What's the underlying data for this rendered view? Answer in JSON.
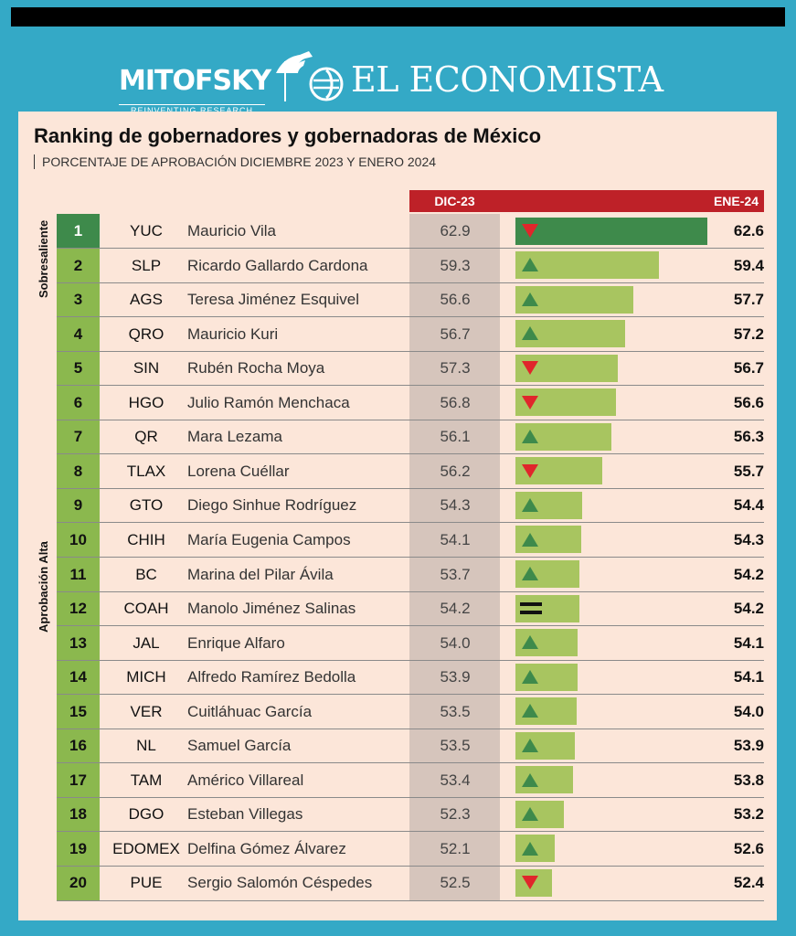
{
  "header": {
    "mitofsky_name": "MITOFSKY",
    "mitofsky_tagline": "REINVENTING RESEARCH",
    "publisher_name": "EL ECONOMISTA"
  },
  "colors": {
    "header_bg": "#34a9c6",
    "panel_bg": "#fce6d9",
    "accent_red": "#be2128",
    "bar_green": "#a8c560",
    "bar_dark_green": "#3e8a4b",
    "rank_green": "#8bb84e",
    "arrow_up": "#3e8a4b",
    "arrow_down": "#e0262b"
  },
  "chart_data": {
    "type": "bar",
    "title": "Ranking de gobernadores y gobernadoras de México",
    "subtitle": "PORCENTAJE DE APROBACIÓN DICIEMBRE 2023 Y ENERO 2024",
    "col_dic_label": "DIC-23",
    "col_ene_label": "ENE-24",
    "group_labels": [
      "Sobresaliente",
      "Aprobación Alta"
    ],
    "xlim": [
      50,
      63
    ],
    "rows": [
      {
        "rank": "1",
        "code": "YUC",
        "name": "Mauricio Vila",
        "dic": "62.9",
        "ene": "62.6",
        "ene_value": 62.6,
        "trend": "down",
        "group": "Sobresaliente"
      },
      {
        "rank": "2",
        "code": "SLP",
        "name": "Ricardo Gallardo Cardona",
        "dic": "59.3",
        "ene": "59.4",
        "ene_value": 59.4,
        "trend": "up",
        "group": "Aprobación Alta"
      },
      {
        "rank": "3",
        "code": "AGS",
        "name": "Teresa Jiménez Esquivel",
        "dic": "56.6",
        "ene": "57.7",
        "ene_value": 57.7,
        "trend": "up",
        "group": "Aprobación Alta"
      },
      {
        "rank": "4",
        "code": "QRO",
        "name": "Mauricio Kuri",
        "dic": "56.7",
        "ene": "57.2",
        "ene_value": 57.2,
        "trend": "up",
        "group": "Aprobación Alta"
      },
      {
        "rank": "5",
        "code": "SIN",
        "name": "Rubén Rocha Moya",
        "dic": "57.3",
        "ene": "56.7",
        "ene_value": 56.7,
        "trend": "down",
        "group": "Aprobación Alta"
      },
      {
        "rank": "6",
        "code": "HGO",
        "name": "Julio Ramón Menchaca",
        "dic": "56.8",
        "ene": "56.6",
        "ene_value": 56.6,
        "trend": "down",
        "group": "Aprobación Alta"
      },
      {
        "rank": "7",
        "code": "QR",
        "name": "Mara Lezama",
        "dic": "56.1",
        "ene": "56.3",
        "ene_value": 56.3,
        "trend": "up",
        "group": "Aprobación Alta"
      },
      {
        "rank": "8",
        "code": "TLAX",
        "name": "Lorena Cuéllar",
        "dic": "56.2",
        "ene": "55.7",
        "ene_value": 55.7,
        "trend": "down",
        "group": "Aprobación Alta"
      },
      {
        "rank": "9",
        "code": "GTO",
        "name": "Diego Sinhue Rodríguez",
        "dic": "54.3",
        "ene": "54.4",
        "ene_value": 54.4,
        "trend": "up",
        "group": "Aprobación Alta"
      },
      {
        "rank": "10",
        "code": "CHIH",
        "name": "María Eugenia Campos",
        "dic": "54.1",
        "ene": "54.3",
        "ene_value": 54.3,
        "trend": "up",
        "group": "Aprobación Alta"
      },
      {
        "rank": "11",
        "code": "BC",
        "name": "Marina del Pilar Ávila",
        "dic": "53.7",
        "ene": "54.2",
        "ene_value": 54.2,
        "trend": "up",
        "group": "Aprobación Alta"
      },
      {
        "rank": "12",
        "code": "COAH",
        "name": "Manolo Jiménez Salinas",
        "dic": "54.2",
        "ene": "54.2",
        "ene_value": 54.2,
        "trend": "equal",
        "group": "Aprobación Alta"
      },
      {
        "rank": "13",
        "code": "JAL",
        "name": "Enrique Alfaro",
        "dic": "54.0",
        "ene": "54.1",
        "ene_value": 54.1,
        "trend": "up",
        "group": "Aprobación Alta"
      },
      {
        "rank": "14",
        "code": "MICH",
        "name": "Alfredo Ramírez Bedolla",
        "dic": "53.9",
        "ene": "54.1",
        "ene_value": 54.1,
        "trend": "up",
        "group": "Aprobación Alta"
      },
      {
        "rank": "15",
        "code": "VER",
        "name": "Cuitláhuac García",
        "dic": "53.5",
        "ene": "54.0",
        "ene_value": 54.0,
        "trend": "up",
        "group": "Aprobación Alta"
      },
      {
        "rank": "16",
        "code": "NL",
        "name": "Samuel García",
        "dic": "53.5",
        "ene": "53.9",
        "ene_value": 53.9,
        "trend": "up",
        "group": "Aprobación Alta"
      },
      {
        "rank": "17",
        "code": "TAM",
        "name": "Américo Villareal",
        "dic": "53.4",
        "ene": "53.8",
        "ene_value": 53.8,
        "trend": "up",
        "group": "Aprobación Alta"
      },
      {
        "rank": "18",
        "code": "DGO",
        "name": "Esteban Villegas",
        "dic": "52.3",
        "ene": "53.2",
        "ene_value": 53.2,
        "trend": "up",
        "group": "Aprobación Alta"
      },
      {
        "rank": "19",
        "code": "EDOMEX",
        "name": "Delfina Gómez Álvarez",
        "dic": "52.1",
        "ene": "52.6",
        "ene_value": 52.6,
        "trend": "up",
        "group": "Aprobación Alta"
      },
      {
        "rank": "20",
        "code": "PUE",
        "name": "Sergio Salomón Céspedes",
        "dic": "52.5",
        "ene": "52.4",
        "ene_value": 52.4,
        "trend": "down",
        "group": "Aprobación Alta"
      }
    ]
  }
}
